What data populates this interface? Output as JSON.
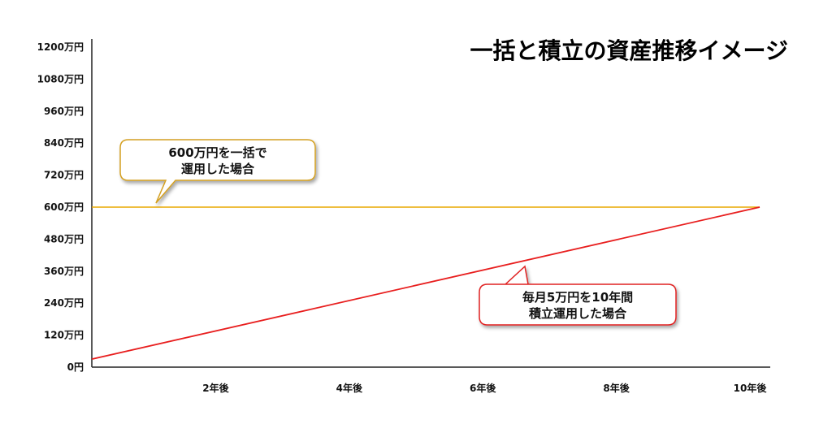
{
  "chart_data": {
    "type": "line",
    "title": "一括と積立の資産推移イメージ",
    "xlabel": "",
    "ylabel": "",
    "x_ticks": [
      "2年後",
      "4年後",
      "6年後",
      "8年後",
      "10年後"
    ],
    "x_tick_values": [
      2,
      4,
      6,
      8,
      10
    ],
    "xlim": [
      0,
      10
    ],
    "y_ticks": [
      "0円",
      "120万円",
      "240万円",
      "360万円",
      "480万円",
      "600万円",
      "720万円",
      "840万円",
      "960万円",
      "1080万円",
      "1200万円"
    ],
    "y_tick_values": [
      0,
      120,
      240,
      360,
      480,
      600,
      720,
      840,
      960,
      1080,
      1200
    ],
    "ylim": [
      0,
      1200
    ],
    "grid": false,
    "legend": "none",
    "series": [
      {
        "x": [
          0,
          10
        ],
        "values": [
          600,
          600
        ],
        "color": "#E8A800"
      },
      {
        "x": [
          0,
          10
        ],
        "values": [
          30,
          600
        ],
        "color": "#E81E1E"
      }
    ],
    "annotations": [
      {
        "lines": [
          "600万円を一括で",
          "運用した場合"
        ],
        "border_color": "#D4A020"
      },
      {
        "lines": [
          "毎月5万円を10年間",
          "積立運用した場合"
        ],
        "border_color": "#E02020"
      }
    ]
  }
}
